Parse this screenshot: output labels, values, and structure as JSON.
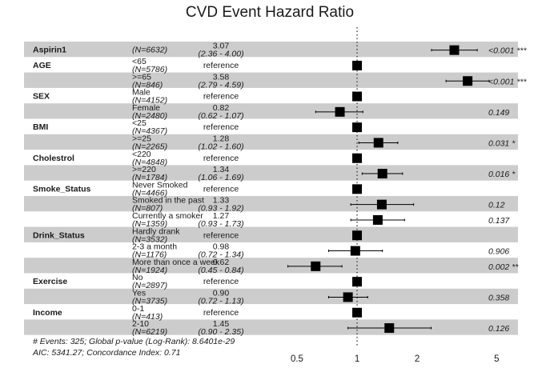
{
  "chart_data": {
    "type": "forest",
    "title": "CVD Event Hazard Ratio",
    "x_scale": "log",
    "x_ticks": [
      0.5,
      1,
      2,
      5
    ],
    "x_range": [
      0.29,
      6.4
    ],
    "reference_line": 1,
    "rows": [
      {
        "variable": "Aspirin1",
        "level": "",
        "n": "(N=6632)",
        "hr_label": "3.07",
        "ci_label": "(2.36 - 4.00)",
        "hr": 3.07,
        "lo": 2.36,
        "hi": 4.0,
        "p_label": "<0.001 ***",
        "shaded": true
      },
      {
        "variable": "AGE",
        "level": "<65",
        "n": "(N=5786)",
        "hr_label": "reference",
        "ci_label": "",
        "hr": 1,
        "lo": null,
        "hi": null,
        "p_label": "",
        "shaded": false
      },
      {
        "variable": "",
        "level": ">=65",
        "n": "(N=846)",
        "hr_label": "3.58",
        "ci_label": "(2.79 - 4.59)",
        "hr": 3.58,
        "lo": 2.79,
        "hi": 4.59,
        "p_label": "<0.001 ***",
        "shaded": true
      },
      {
        "variable": "SEX",
        "level": "Male",
        "n": "(N=4152)",
        "hr_label": "reference",
        "ci_label": "",
        "hr": 1,
        "lo": null,
        "hi": null,
        "p_label": "",
        "shaded": false
      },
      {
        "variable": "",
        "level": "Female",
        "n": "(N=2480)",
        "hr_label": "0.82",
        "ci_label": "(0.62 - 1.07)",
        "hr": 0.82,
        "lo": 0.62,
        "hi": 1.07,
        "p_label": "0.149",
        "shaded": true
      },
      {
        "variable": "BMI",
        "level": "<25",
        "n": "(N=4367)",
        "hr_label": "reference",
        "ci_label": "",
        "hr": 1,
        "lo": null,
        "hi": null,
        "p_label": "",
        "shaded": false
      },
      {
        "variable": "",
        "level": ">=25",
        "n": "(N=2265)",
        "hr_label": "1.28",
        "ci_label": "(1.02 - 1.60)",
        "hr": 1.28,
        "lo": 1.02,
        "hi": 1.6,
        "p_label": "0.031 *",
        "shaded": true
      },
      {
        "variable": "Cholestrol",
        "level": "<220",
        "n": "(N=4848)",
        "hr_label": "reference",
        "ci_label": "",
        "hr": 1,
        "lo": null,
        "hi": null,
        "p_label": "",
        "shaded": false
      },
      {
        "variable": "",
        "level": ">=220",
        "n": "(N=1784)",
        "hr_label": "1.34",
        "ci_label": "(1.06 - 1.69)",
        "hr": 1.34,
        "lo": 1.06,
        "hi": 1.69,
        "p_label": "0.016 *",
        "shaded": true
      },
      {
        "variable": "Smoke_Status",
        "level": "Never Smoked",
        "n": "(N=4466)",
        "hr_label": "reference",
        "ci_label": "",
        "hr": 1,
        "lo": null,
        "hi": null,
        "p_label": "",
        "shaded": false
      },
      {
        "variable": "",
        "level": "Smoked in the past",
        "n": "(N=807)",
        "hr_label": "1.33",
        "ci_label": "(0.93 - 1.92)",
        "hr": 1.33,
        "lo": 0.93,
        "hi": 1.92,
        "p_label": "0.12",
        "shaded": true
      },
      {
        "variable": "",
        "level": "Currently a smoker",
        "n": "(N=1359)",
        "hr_label": "1.27",
        "ci_label": "(0.93 - 1.73)",
        "hr": 1.27,
        "lo": 0.93,
        "hi": 1.73,
        "p_label": "0.137",
        "shaded": false
      },
      {
        "variable": "Drink_Status",
        "level": "Hardly drank",
        "n": "(N=3532)",
        "hr_label": "reference",
        "ci_label": "",
        "hr": 1,
        "lo": null,
        "hi": null,
        "p_label": "",
        "shaded": true
      },
      {
        "variable": "",
        "level": "2-3 a month",
        "n": "(N=1176)",
        "hr_label": "0.98",
        "ci_label": "(0.72 - 1.34)",
        "hr": 0.98,
        "lo": 0.72,
        "hi": 1.34,
        "p_label": "0.906",
        "shaded": false
      },
      {
        "variable": "",
        "level": "More than once a week",
        "n": "(N=1924)",
        "hr_label": "0.62",
        "ci_label": "(0.45 - 0.84)",
        "hr": 0.62,
        "lo": 0.45,
        "hi": 0.84,
        "p_label": "0.002 **",
        "shaded": true
      },
      {
        "variable": "Exercise",
        "level": "No",
        "n": "(N=2897)",
        "hr_label": "reference",
        "ci_label": "",
        "hr": 1,
        "lo": null,
        "hi": null,
        "p_label": "",
        "shaded": false
      },
      {
        "variable": "",
        "level": "Yes",
        "n": "(N=3735)",
        "hr_label": "0.90",
        "ci_label": "(0.72 - 1.13)",
        "hr": 0.9,
        "lo": 0.72,
        "hi": 1.13,
        "p_label": "0.358",
        "shaded": true
      },
      {
        "variable": "Income",
        "level": "0-1",
        "n": "(N=413)",
        "hr_label": "reference",
        "ci_label": "",
        "hr": 1,
        "lo": null,
        "hi": null,
        "p_label": "",
        "shaded": false
      },
      {
        "variable": "",
        "level": "2-10",
        "n": "(N=6219)",
        "hr_label": "1.45",
        "ci_label": "(0.90 - 2.35)",
        "hr": 1.45,
        "lo": 0.9,
        "hi": 2.35,
        "p_label": "0.126",
        "shaded": true
      }
    ],
    "footer": [
      "# Events: 325; Global p-value (Log-Rank): 8.6401e-29",
      "AIC: 5341.27; Concordance Index: 0.71"
    ],
    "colors": {
      "band": "#cccccc",
      "mark": "#000000",
      "text": "#1a1a1a"
    }
  }
}
